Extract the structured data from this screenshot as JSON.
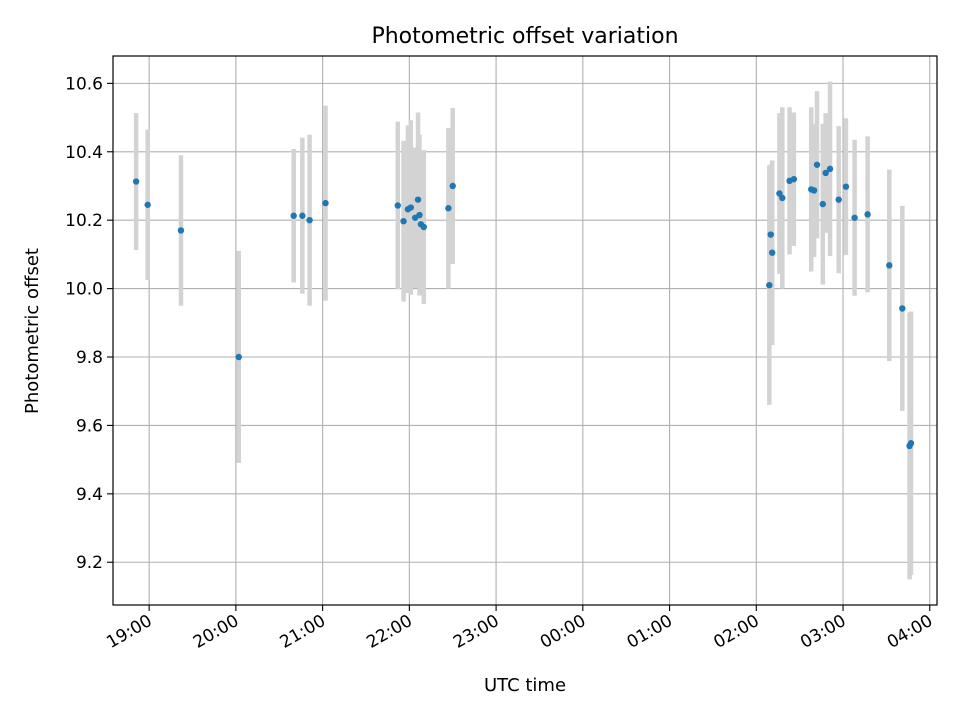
{
  "chart_data": {
    "type": "scatter",
    "title": "Photometric offset variation",
    "xlabel": "UTC time",
    "ylabel": "Photometric offset",
    "x_ticks": [
      "19:00",
      "20:00",
      "21:00",
      "22:00",
      "23:00",
      "00:00",
      "01:00",
      "02:00",
      "03:00",
      "04:00"
    ],
    "y_ticks": [
      "9.2",
      "9.4",
      "9.6",
      "9.8",
      "10.0",
      "10.2",
      "10.4",
      "10.6"
    ],
    "xlim": [
      "18:35",
      "04:05"
    ],
    "ylim": [
      9.075,
      10.68
    ],
    "grid": true,
    "marker_color": "#1f77b4",
    "errorbar_color": "#d3d3d3",
    "points": [
      {
        "x": "18:51",
        "y": 10.313,
        "err": 0.2
      },
      {
        "x": "18:59",
        "y": 10.245,
        "err": 0.22
      },
      {
        "x": "19:22",
        "y": 10.17,
        "err": 0.22
      },
      {
        "x": "20:02",
        "y": 9.8,
        "err": 0.31
      },
      {
        "x": "20:40",
        "y": 10.213,
        "err": 0.195
      },
      {
        "x": "20:46",
        "y": 10.213,
        "err": 0.228
      },
      {
        "x": "20:51",
        "y": 10.2,
        "err": 0.25
      },
      {
        "x": "21:02",
        "y": 10.25,
        "err": 0.285
      },
      {
        "x": "21:52",
        "y": 10.243,
        "err": 0.245
      },
      {
        "x": "21:56",
        "y": 10.197,
        "err": 0.235
      },
      {
        "x": "21:59",
        "y": 10.232,
        "err": 0.245
      },
      {
        "x": "22:01",
        "y": 10.237,
        "err": 0.255
      },
      {
        "x": "22:04",
        "y": 10.207,
        "err": 0.205
      },
      {
        "x": "22:06",
        "y": 10.26,
        "err": 0.255
      },
      {
        "x": "22:07",
        "y": 10.215,
        "err": 0.235
      },
      {
        "x": "22:08",
        "y": 10.188,
        "err": 0.205
      },
      {
        "x": "22:10",
        "y": 10.18,
        "err": 0.225
      },
      {
        "x": "22:27",
        "y": 10.235,
        "err": 0.235
      },
      {
        "x": "22:30",
        "y": 10.3,
        "err": 0.228
      },
      {
        "x": "02:09",
        "y": 10.01,
        "err": 0.35
      },
      {
        "x": "02:10",
        "y": 10.158,
        "err": 0.205
      },
      {
        "x": "02:11",
        "y": 10.105,
        "err": 0.27
      },
      {
        "x": "02:16",
        "y": 10.278,
        "err": 0.235
      },
      {
        "x": "02:18",
        "y": 10.265,
        "err": 0.265
      },
      {
        "x": "02:23",
        "y": 10.315,
        "err": 0.215
      },
      {
        "x": "02:26",
        "y": 10.32,
        "err": 0.195
      },
      {
        "x": "02:38",
        "y": 10.29,
        "err": 0.24
      },
      {
        "x": "02:40",
        "y": 10.287,
        "err": 0.195
      },
      {
        "x": "02:42",
        "y": 10.362,
        "err": 0.215
      },
      {
        "x": "02:46",
        "y": 10.247,
        "err": 0.235
      },
      {
        "x": "02:48",
        "y": 10.338,
        "err": 0.175
      },
      {
        "x": "02:51",
        "y": 10.35,
        "err": 0.255
      },
      {
        "x": "02:57",
        "y": 10.26,
        "err": 0.215
      },
      {
        "x": "03:02",
        "y": 10.298,
        "err": 0.2
      },
      {
        "x": "03:08",
        "y": 10.207,
        "err": 0.228
      },
      {
        "x": "03:17",
        "y": 10.217,
        "err": 0.228
      },
      {
        "x": "03:32",
        "y": 10.068,
        "err": 0.28
      },
      {
        "x": "03:41",
        "y": 9.942,
        "err": 0.3
      },
      {
        "x": "03:46",
        "y": 9.54,
        "err": 0.39
      },
      {
        "x": "03:47",
        "y": 9.548,
        "err": 0.385
      }
    ]
  }
}
